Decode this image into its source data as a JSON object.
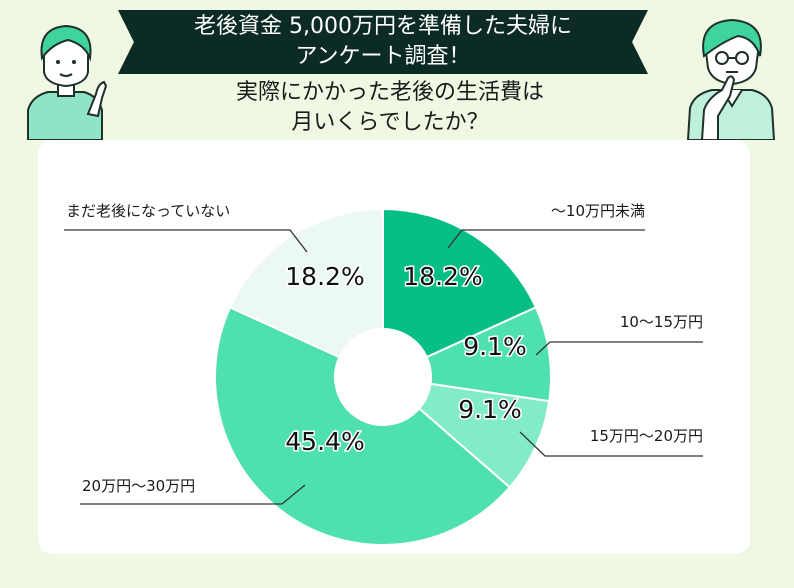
{
  "header": {
    "banner_line1": "老後資金 5,000万円を準備した夫婦に",
    "banner_line2": "アンケート調査！",
    "question_line1": "実際にかかった老後の生活費は",
    "question_line2": "月いくらでしたか？"
  },
  "colors": {
    "background": "#eef8e2",
    "banner": "#0d2b25",
    "card": "#ffffff",
    "slice_1": "#07bf84",
    "slice_2": "#4ee0b0",
    "slice_3": "#82ebc8",
    "slice_4": "#4ee0b0",
    "slice_5": "#ebf8f3"
  },
  "icons": [
    "woman-pointing-illustration",
    "man-thinking-illustration"
  ],
  "chart_data": {
    "type": "pie",
    "donut": true,
    "title": "",
    "categories": [
      "〜10万円未満",
      "10〜15万円",
      "15万円〜20万円",
      "20万円〜30万円",
      "まだ老後になっていない"
    ],
    "values": [
      18.2,
      9.1,
      9.1,
      45.4,
      18.2
    ],
    "value_labels": [
      "18.2%",
      "9.1%",
      "9.1%",
      "45.4%",
      "18.2%"
    ],
    "legend": "callout labels"
  }
}
